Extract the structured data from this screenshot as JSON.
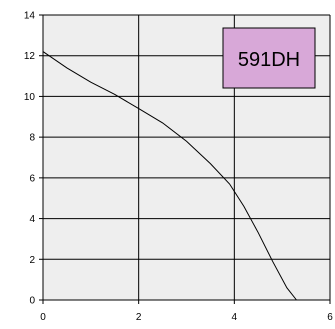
{
  "chart_data": {
    "type": "line",
    "title": "",
    "xlabel": "",
    "ylabel": "",
    "xlim": [
      0,
      6
    ],
    "ylim": [
      0,
      14
    ],
    "x_ticks": [
      0,
      2,
      4,
      6
    ],
    "y_ticks": [
      0,
      2,
      4,
      6,
      8,
      10,
      12,
      14
    ],
    "grid": true,
    "annotation": "591DH",
    "colors": {
      "plot_background": "#eeeeee",
      "grid": "#000000",
      "line": "#000000",
      "annotation_fill": "#d8a8d8"
    },
    "series": [
      {
        "x": [
          0,
          0.5,
          1.0,
          1.5,
          2.0,
          2.5,
          3.0,
          3.5,
          3.9,
          4.2,
          4.5,
          4.8,
          5.1,
          5.3
        ],
        "y": [
          12.2,
          11.4,
          10.7,
          10.1,
          9.4,
          8.7,
          7.8,
          6.7,
          5.7,
          4.6,
          3.3,
          1.9,
          0.6,
          0.0
        ]
      }
    ]
  }
}
